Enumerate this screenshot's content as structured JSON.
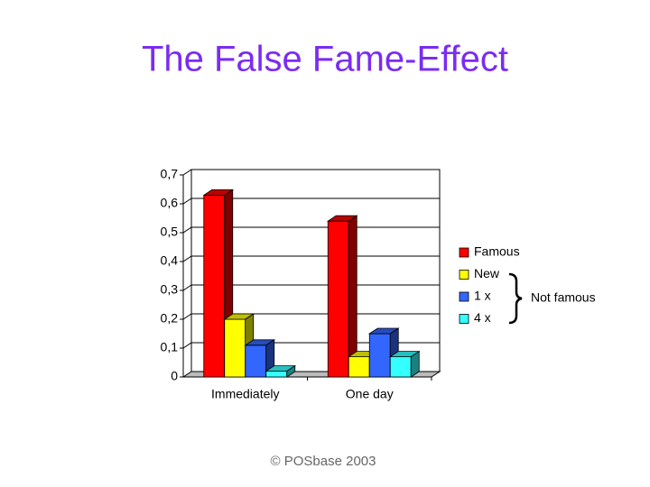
{
  "chart_data": {
    "type": "bar3d",
    "title": "The False Fame-Effect",
    "categories": [
      "Immediately",
      "One day"
    ],
    "series": [
      {
        "name": "Famous",
        "color": "#ff0000",
        "values": [
          0.63,
          0.54
        ]
      },
      {
        "name": "New",
        "color": "#ffff00",
        "values": [
          0.2,
          0.07
        ]
      },
      {
        "name": "1 x",
        "color": "#3366ff",
        "values": [
          0.11,
          0.15
        ]
      },
      {
        "name": "4 x",
        "color": "#33ffff",
        "values": [
          0.02,
          0.07
        ]
      }
    ],
    "ylim": [
      0,
      0.7
    ],
    "yticks": [
      0,
      {
        "value": 0.1,
        "label": "0,1"
      },
      {
        "value": 0.2,
        "label": "0,2"
      },
      {
        "value": 0.3,
        "label": "0,3"
      },
      {
        "value": 0.4,
        "label": "0,4"
      },
      {
        "value": 0.5,
        "label": "0,5"
      },
      {
        "value": 0.6,
        "label": "0,6"
      },
      {
        "value": 0.7,
        "label": "0,7"
      }
    ],
    "grid": true,
    "legend": "right",
    "annotation": "Not famous"
  },
  "footer": "© POSbase 2003"
}
